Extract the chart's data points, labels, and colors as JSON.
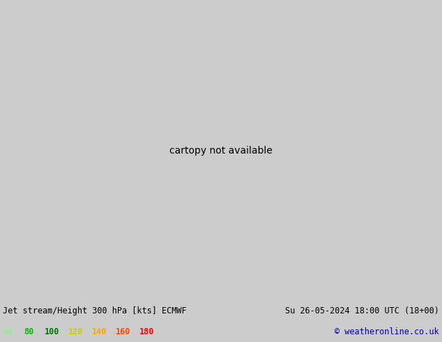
{
  "title_left": "Jet stream/Height 300 hPa [kts] ECMWF",
  "title_right": "Su 26-05-2024 18:00 UTC (18+00)",
  "copyright": "© weatheronline.co.uk",
  "legend_values": [
    60,
    80,
    100,
    120,
    140,
    160,
    180
  ],
  "legend_colors": [
    "#90ee90",
    "#00bb00",
    "#007700",
    "#cccc00",
    "#ffa500",
    "#ff4500",
    "#ff0000"
  ],
  "ocean_color": "#d8e8f0",
  "land_color": "#f0f0f0",
  "light_green": "#c8e8c0",
  "mid_green": "#90d070",
  "dark_green": "#00aa00",
  "bright_green": "#00ee00",
  "yellow_green": "#aaee00",
  "yellow": "#ffff00",
  "orange": "#ffaa00",
  "contour_color": "#000000",
  "state_color": "#996644",
  "bottom_bar_color": "#cccccc",
  "copyright_color": "#0000aa",
  "figsize": [
    6.34,
    4.9
  ],
  "dpi": 100
}
